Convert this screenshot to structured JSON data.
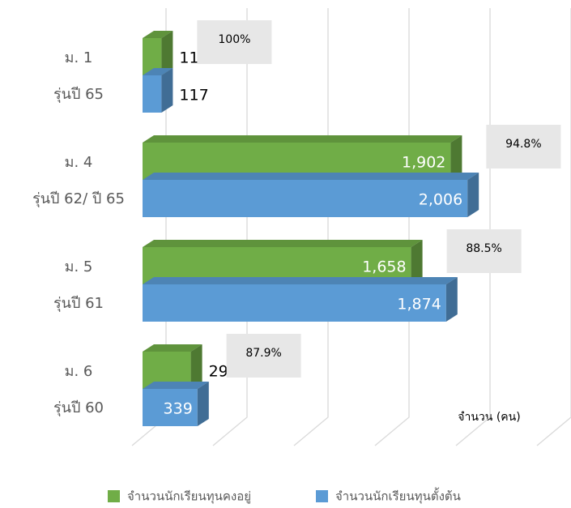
{
  "chart_data": {
    "type": "bar3d_horizontal",
    "x_label": "จำนวน (คน)",
    "categories": [
      [
        "ม. 1",
        "รุ่นปี 65"
      ],
      [
        "ม. 4",
        "รุ่นปี 62/ ปี 65"
      ],
      [
        "ม. 5",
        "รุ่นปี 61"
      ],
      [
        "ม. 6",
        "รุ่นปี 60"
      ]
    ],
    "series": [
      {
        "name": "จำนวนนักเรียนทุนคงอยู่",
        "color": "#70ad47",
        "values": [
          117,
          1902,
          1658,
          298
        ],
        "value_labels": [
          "117",
          "1,902",
          "1,658",
          "298"
        ]
      },
      {
        "name": "จำนวนนักเรียนทุนตั้งต้น",
        "color": "#5b9bd5",
        "values": [
          117,
          2006,
          1874,
          339
        ],
        "value_labels": [
          "117",
          "2,006",
          "1,874",
          "339"
        ]
      }
    ],
    "annotations": [
      "100%",
      "94.8%",
      "88.5%",
      "87.9%"
    ],
    "xlim": [
      0,
      2500
    ],
    "xticks": [
      0,
      500,
      1000,
      1500,
      2000,
      2500
    ],
    "grid": true
  }
}
